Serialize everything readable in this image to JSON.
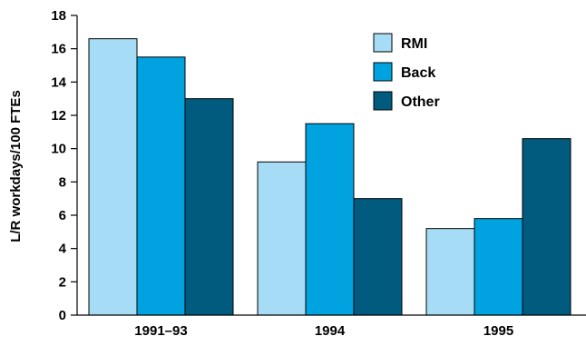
{
  "chart_data": {
    "type": "bar",
    "title": "",
    "xlabel": "",
    "ylabel": "L/R workdays/100 FTEs",
    "ylim": [
      0,
      18
    ],
    "yticks": [
      0,
      2,
      4,
      6,
      8,
      10,
      12,
      14,
      16,
      18
    ],
    "categories": [
      "1991–93",
      "1994",
      "1995"
    ],
    "series": [
      {
        "name": "RMI",
        "values": [
          16.6,
          9.2,
          5.2
        ],
        "color": "#a6dcf5"
      },
      {
        "name": "Back",
        "values": [
          15.5,
          11.5,
          5.8
        ],
        "color": "#00a3e0"
      },
      {
        "name": "Other",
        "values": [
          13.0,
          7.0,
          10.6
        ],
        "color": "#005b7f"
      }
    ],
    "grid": false,
    "legend_position": "top-right"
  }
}
